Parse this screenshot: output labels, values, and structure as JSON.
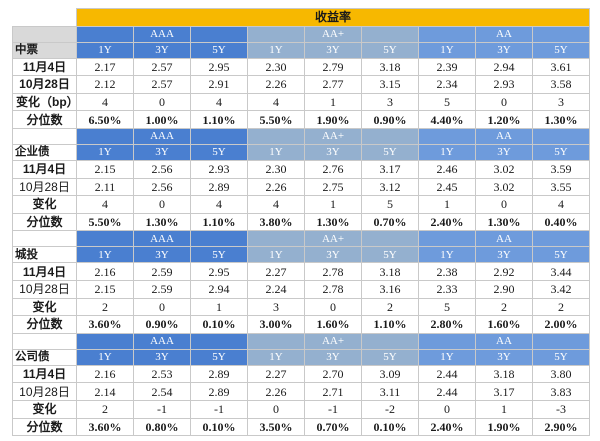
{
  "header": {
    "title": "收益率"
  },
  "groups": [
    "AAA",
    "AA+",
    "AA"
  ],
  "tenors": [
    "1Y",
    "3Y",
    "5Y"
  ],
  "sections": [
    {
      "name": "中票",
      "rows": [
        {
          "label": "11月4日",
          "values": [
            "2.17",
            "2.57",
            "2.95",
            "2.30",
            "2.79",
            "3.18",
            "2.39",
            "2.94",
            "3.61"
          ]
        },
        {
          "label": "10月28日",
          "values": [
            "2.12",
            "2.57",
            "2.91",
            "2.26",
            "2.77",
            "3.15",
            "2.34",
            "2.93",
            "3.58"
          ]
        },
        {
          "label": "变化（bp）",
          "values": [
            "4",
            "0",
            "4",
            "4",
            "1",
            "3",
            "5",
            "0",
            "3"
          ]
        },
        {
          "label": "分位数",
          "values": [
            "6.50%",
            "1.00%",
            "1.10%",
            "5.50%",
            "1.90%",
            "0.90%",
            "4.40%",
            "1.20%",
            "1.30%"
          ]
        }
      ]
    },
    {
      "name": "企业债",
      "rows": [
        {
          "label": "11月4日",
          "values": [
            "2.15",
            "2.56",
            "2.93",
            "2.30",
            "2.76",
            "3.17",
            "2.46",
            "3.02",
            "3.59"
          ]
        },
        {
          "label": "10月28日",
          "values": [
            "2.11",
            "2.56",
            "2.89",
            "2.26",
            "2.75",
            "3.12",
            "2.45",
            "3.02",
            "3.55"
          ]
        },
        {
          "label": "变化",
          "values": [
            "4",
            "0",
            "4",
            "4",
            "1",
            "5",
            "1",
            "0",
            "4"
          ]
        },
        {
          "label": "分位数",
          "values": [
            "5.50%",
            "1.30%",
            "1.10%",
            "3.80%",
            "1.30%",
            "0.70%",
            "2.40%",
            "1.30%",
            "0.40%"
          ]
        }
      ]
    },
    {
      "name": "城投",
      "rows": [
        {
          "label": "11月4日",
          "values": [
            "2.16",
            "2.59",
            "2.95",
            "2.27",
            "2.78",
            "3.18",
            "2.38",
            "2.92",
            "3.44"
          ]
        },
        {
          "label": "10月28日",
          "values": [
            "2.15",
            "2.59",
            "2.94",
            "2.24",
            "2.78",
            "3.16",
            "2.33",
            "2.90",
            "3.42"
          ]
        },
        {
          "label": "变化",
          "values": [
            "2",
            "0",
            "1",
            "3",
            "0",
            "2",
            "5",
            "2",
            "2"
          ]
        },
        {
          "label": "分位数",
          "values": [
            "3.60%",
            "0.90%",
            "0.10%",
            "3.00%",
            "1.60%",
            "1.10%",
            "2.80%",
            "1.60%",
            "2.00%"
          ]
        }
      ]
    },
    {
      "name": "公司债",
      "rows": [
        {
          "label": "11月4日",
          "values": [
            "2.16",
            "2.53",
            "2.89",
            "2.27",
            "2.70",
            "3.09",
            "2.44",
            "3.18",
            "3.80"
          ]
        },
        {
          "label": "10月28日",
          "values": [
            "2.14",
            "2.54",
            "2.89",
            "2.26",
            "2.71",
            "3.11",
            "2.44",
            "3.17",
            "3.83"
          ]
        },
        {
          "label": "变化",
          "values": [
            "2",
            "-1",
            "-1",
            "0",
            "-1",
            "-2",
            "0",
            "1",
            "-3"
          ]
        },
        {
          "label": "分位数",
          "values": [
            "3.60%",
            "0.80%",
            "0.10%",
            "3.50%",
            "0.70%",
            "0.10%",
            "2.40%",
            "1.90%",
            "2.90%"
          ]
        }
      ]
    }
  ],
  "colors": {
    "banner": "#f7b800",
    "aaa_header": "#4a7fd0",
    "aa_plus_header": "#94b0cf",
    "aa_header": "#6e9bdc",
    "section_label_grey": "#d9d9d9"
  }
}
